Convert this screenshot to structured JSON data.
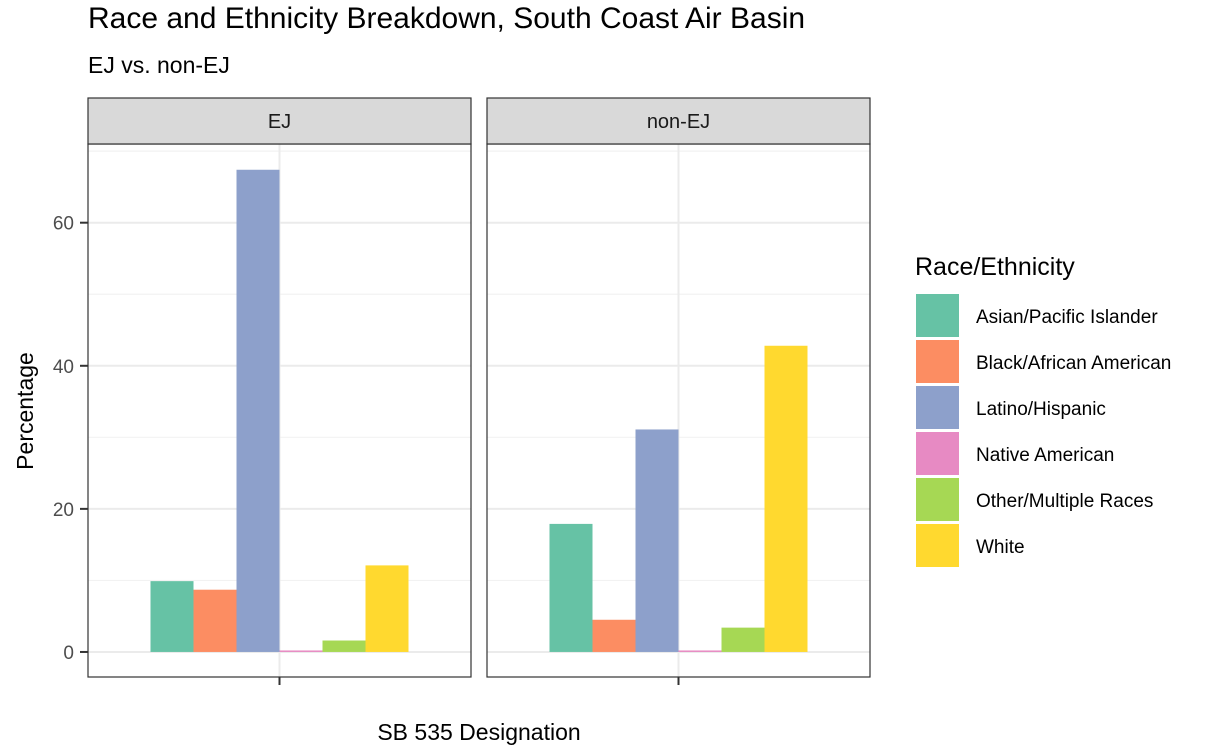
{
  "title": "Race and Ethnicity Breakdown, South Coast Air Basin",
  "subtitle": "EJ vs. non-EJ",
  "chart_data": {
    "type": "bar",
    "title": "Race and Ethnicity Breakdown, South Coast Air Basin",
    "subtitle": "EJ vs. non-EJ",
    "xlabel": "SB 535 Designation",
    "ylabel": "Percentage",
    "ylim": [
      -3.5,
      71
    ],
    "yticks": [
      0,
      20,
      40,
      60
    ],
    "grid": true,
    "legend_position": "right",
    "legend_title": "Race/Ethnicity",
    "panels": [
      "EJ",
      "non-EJ"
    ],
    "series": [
      {
        "name": "Asian/Pacific Islander",
        "color": "#66c2a5",
        "values": [
          9.9,
          17.9
        ]
      },
      {
        "name": "Black/African American",
        "color": "#fc8d62",
        "values": [
          8.7,
          4.5
        ]
      },
      {
        "name": "Latino/Hispanic",
        "color": "#8da0cb",
        "values": [
          67.4,
          31.1
        ]
      },
      {
        "name": "Native American",
        "color": "#e78ac3",
        "values": [
          0.2,
          0.2
        ]
      },
      {
        "name": "Other/Multiple Races",
        "color": "#a6d854",
        "values": [
          1.6,
          3.4
        ]
      },
      {
        "name": "White",
        "color": "#ffd92f",
        "values": [
          12.1,
          42.8
        ]
      }
    ]
  }
}
